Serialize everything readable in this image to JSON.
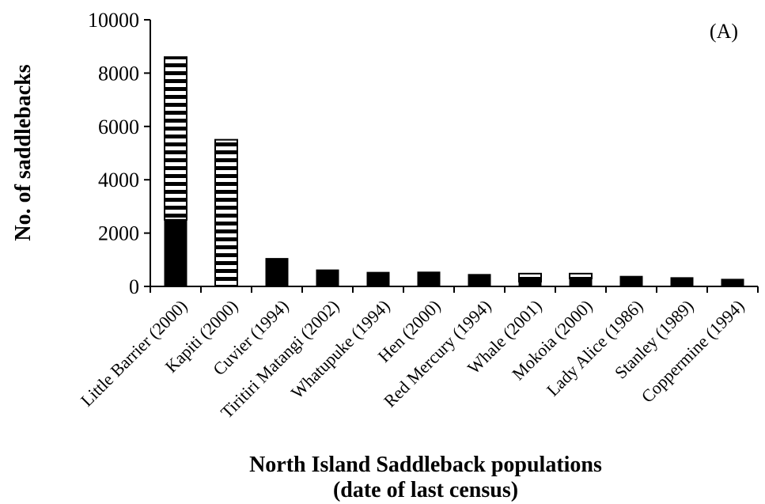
{
  "chart_data": {
    "type": "bar",
    "panel_label": "(A)",
    "xlabel": "North Island Saddleback populations",
    "xlabel_line2": "(date of last census)",
    "ylabel": "No. of saddlebacks",
    "ylim": [
      0,
      10000
    ],
    "yticks": [
      "0",
      "2000",
      "4000",
      "6000",
      "8000",
      "10000"
    ],
    "categories": [
      "Little Barrier (2000)",
      "Kapiti (2000)",
      "Cuvier (1994)",
      "Tiritiri Matangi (2002)",
      "Whatupuke (1994)",
      "Hen (2000)",
      "Red Mercury (1994)",
      "Whale (2001)",
      "Mokoia (2000)",
      "Lady Alice (1986)",
      "Stanley (1989)",
      "Coppermine (1994)"
    ],
    "series": [
      {
        "style": "solid",
        "values": [
          2500,
          0,
          1050,
          620,
          530,
          540,
          450,
          180,
          300,
          380,
          330,
          270
        ]
      },
      {
        "style": "striped",
        "values": [
          6100,
          5500,
          0,
          0,
          0,
          0,
          0,
          300,
          180,
          0,
          0,
          0
        ]
      }
    ],
    "colors": {
      "solid": "#000000",
      "striped_fill": "#ffffff",
      "stripe": "#000000"
    },
    "legend": "none",
    "grid": false
  }
}
